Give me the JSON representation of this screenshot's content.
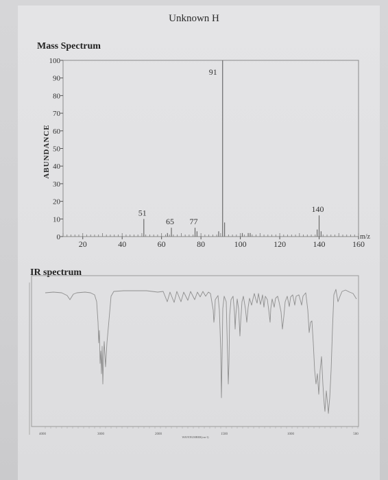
{
  "page_title": "Unknown H",
  "chart_data": [
    {
      "type": "bar",
      "title": "Mass Spectrum",
      "ylabel": "ABUNDANCE",
      "xlabel": "m/z",
      "xlim": [
        10,
        160
      ],
      "ylim": [
        0,
        100
      ],
      "xticks": [
        20,
        40,
        60,
        80,
        100,
        120,
        140,
        160
      ],
      "yticks": [
        0,
        10,
        20,
        30,
        40,
        50,
        60,
        70,
        80,
        90,
        100
      ],
      "peaks": [
        {
          "x": 51,
          "y": 10,
          "label": "51"
        },
        {
          "x": 63,
          "y": 2
        },
        {
          "x": 65,
          "y": 5,
          "label": "65"
        },
        {
          "x": 77,
          "y": 5,
          "label": "77"
        },
        {
          "x": 78,
          "y": 3
        },
        {
          "x": 89,
          "y": 3
        },
        {
          "x": 91,
          "y": 100,
          "label": "91"
        },
        {
          "x": 92,
          "y": 8
        },
        {
          "x": 101,
          "y": 2
        },
        {
          "x": 104,
          "y": 2
        },
        {
          "x": 105,
          "y": 2
        },
        {
          "x": 139,
          "y": 4
        },
        {
          "x": 140,
          "y": 12,
          "label": "140"
        },
        {
          "x": 141,
          "y": 3
        }
      ]
    },
    {
      "type": "line",
      "title": "IR spectrum",
      "xticks": [
        "4000",
        "3000",
        "2000",
        "1500",
        "1000",
        "500"
      ],
      "xlabel": "WAVENUMBER(cm-1)"
    }
  ]
}
